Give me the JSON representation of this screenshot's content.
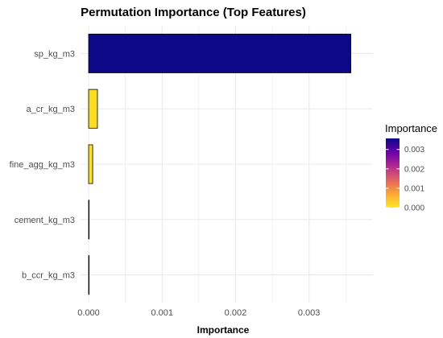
{
  "chart_data": {
    "type": "bar",
    "orientation": "horizontal",
    "title": "Permutation Importance (Top Features)",
    "xlabel": "Importance",
    "ylabel": "",
    "categories": [
      "sp_kg_m3",
      "a_cr_kg_m3",
      "fine_agg_kg_m3",
      "cement_kg_m3",
      "b_ccr_kg_m3"
    ],
    "values": [
      0.00357,
      0.00012,
      5.5e-05,
      5e-07,
      5e-07
    ],
    "xlim": [
      -0.00011,
      0.00387
    ],
    "xticks": [
      0.0,
      0.001,
      0.002,
      0.003
    ],
    "xtick_labels": [
      "0.000",
      "0.001",
      "0.002",
      "0.003"
    ],
    "grid": true,
    "legend": {
      "title": "Importance",
      "type": "colorbar",
      "placement": "right",
      "range": [
        0,
        0.00357
      ],
      "ticks": [
        0.0,
        0.001,
        0.002,
        0.003
      ],
      "tick_labels": [
        "0.000",
        "0.001",
        "0.002",
        "0.003"
      ],
      "palette": [
        "#fde725",
        "#fca636",
        "#e16462",
        "#b12a90",
        "#6a00a8",
        "#0d0887"
      ]
    },
    "colors": {
      "bar_outline": "#000000",
      "grid": "#ebebeb"
    }
  }
}
